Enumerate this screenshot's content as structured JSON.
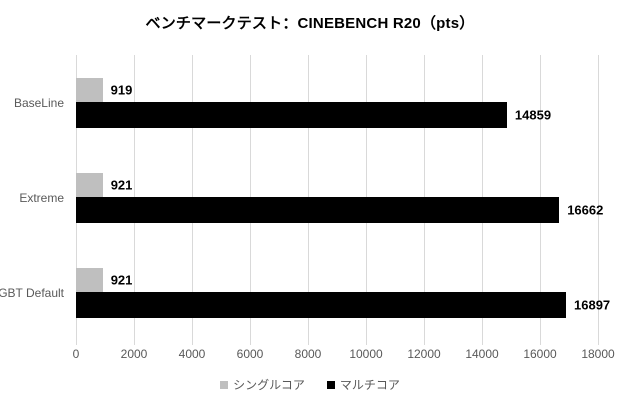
{
  "chart_data": {
    "type": "bar",
    "orientation": "horizontal",
    "title": "ベンチマークテスト：CINEBENCH R20（pts）",
    "categories": [
      "BaseLine",
      "Extreme",
      "GBT Default"
    ],
    "series": [
      {
        "name": "シングルコア",
        "color": "#bfbfbf",
        "values": [
          919,
          921,
          921
        ]
      },
      {
        "name": "マルチコア",
        "color": "#000000",
        "values": [
          14859,
          16662,
          16897
        ]
      }
    ],
    "xlim": [
      0,
      18000
    ],
    "xticks": [
      0,
      2000,
      4000,
      6000,
      8000,
      10000,
      12000,
      14000,
      16000,
      18000
    ],
    "grid": true,
    "data_labels": true,
    "legend_position": "bottom"
  },
  "colors": {
    "background": "#ffffff",
    "gridline": "#d9d9d9",
    "axis_text": "#595959",
    "value_label": "#000000"
  }
}
